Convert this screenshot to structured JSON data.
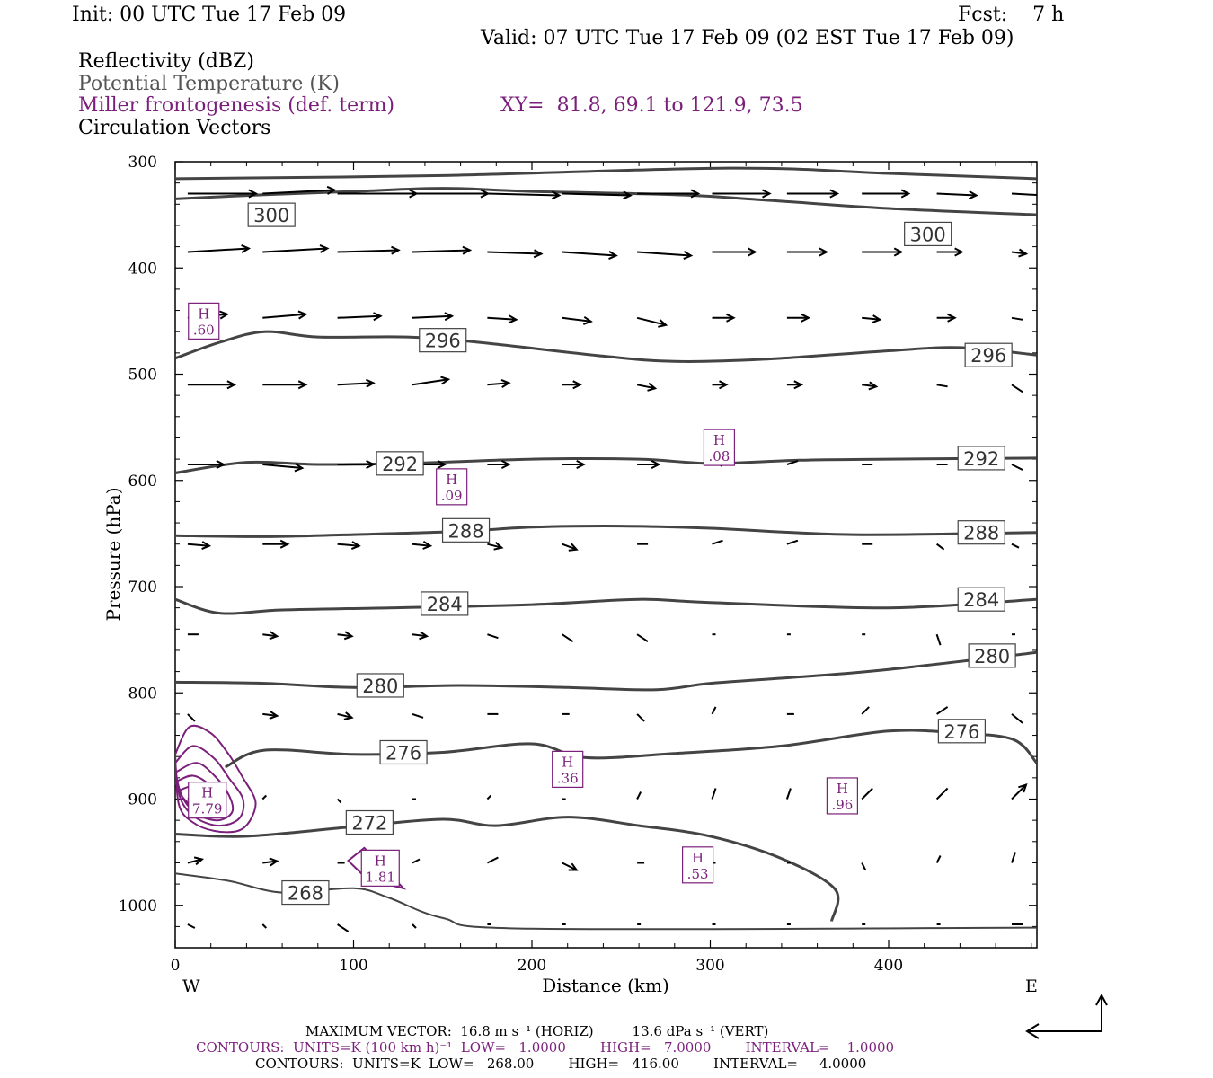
{
  "header": {
    "init": "Init: 00 UTC Tue 17 Feb 09",
    "fcst": "Fcst:    7 h",
    "valid": "Valid: 07 UTC Tue 17 Feb 09 (02 EST Tue 17 Feb 09)",
    "field1": "Reflectivity (dBZ)",
    "field2": "Potential Temperature (K)",
    "field3": "Miller frontogenesis (def. term)",
    "xy": "XY=  81.8, 69.1 to 121.9, 73.5",
    "field4": "Circulation Vectors"
  },
  "colors": {
    "theta": "#444444",
    "fronto": "#7a1f7a",
    "vectors": "#000000"
  },
  "chart_data": {
    "type": "line",
    "xlabel": "Distance (km)",
    "ylabel": "Pressure (hPa)",
    "xlim": [
      0,
      483
    ],
    "ylim": [
      300,
      1040
    ],
    "y_inverted": true,
    "x_ticks": [
      "0",
      "100",
      "200",
      "300",
      "400"
    ],
    "y_ticks": [
      "300",
      "400",
      "500",
      "600",
      "700",
      "800",
      "900",
      "1000"
    ],
    "west_label": "W",
    "east_label": "E",
    "theta_contours": [
      {
        "label": "300",
        "points": [
          [
            0,
            335
          ],
          [
            50,
            331
          ],
          [
            100,
            328
          ],
          [
            150,
            325
          ],
          [
            200,
            328
          ],
          [
            280,
            331
          ],
          [
            330,
            336
          ],
          [
            400,
            344
          ],
          [
            483,
            350
          ]
        ]
      },
      {
        "label": "296",
        "points": [
          [
            0,
            485
          ],
          [
            25,
            470
          ],
          [
            50,
            460
          ],
          [
            80,
            465
          ],
          [
            130,
            465
          ],
          [
            170,
            470
          ],
          [
            240,
            483
          ],
          [
            280,
            488
          ],
          [
            330,
            486
          ],
          [
            400,
            478
          ],
          [
            440,
            475
          ],
          [
            483,
            482
          ]
        ]
      },
      {
        "label": "292",
        "points": [
          [
            0,
            593
          ],
          [
            40,
            583
          ],
          [
            80,
            585
          ],
          [
            130,
            584
          ],
          [
            200,
            580
          ],
          [
            260,
            580
          ],
          [
            300,
            584
          ],
          [
            350,
            581
          ],
          [
            400,
            580
          ],
          [
            483,
            579
          ]
        ]
      },
      {
        "label": "288",
        "points": [
          [
            0,
            652
          ],
          [
            50,
            653
          ],
          [
            100,
            651
          ],
          [
            160,
            648
          ],
          [
            200,
            644
          ],
          [
            250,
            643
          ],
          [
            300,
            645
          ],
          [
            380,
            651
          ],
          [
            483,
            649
          ]
        ]
      },
      {
        "label": "284",
        "points": [
          [
            0,
            712
          ],
          [
            25,
            725
          ],
          [
            60,
            722
          ],
          [
            120,
            720
          ],
          [
            200,
            717
          ],
          [
            260,
            712
          ],
          [
            300,
            715
          ],
          [
            400,
            720
          ],
          [
            483,
            712
          ]
        ]
      },
      {
        "label": "280",
        "points": [
          [
            0,
            790
          ],
          [
            50,
            791
          ],
          [
            100,
            795
          ],
          [
            160,
            793
          ],
          [
            220,
            795
          ],
          [
            270,
            797
          ],
          [
            300,
            791
          ],
          [
            350,
            785
          ],
          [
            400,
            778
          ],
          [
            483,
            762
          ]
        ]
      },
      {
        "label": "276",
        "points": [
          [
            28,
            870
          ],
          [
            50,
            854
          ],
          [
            100,
            858
          ],
          [
            150,
            856
          ],
          [
            200,
            848
          ],
          [
            230,
            861
          ],
          [
            280,
            857
          ],
          [
            340,
            850
          ],
          [
            400,
            836
          ],
          [
            440,
            838
          ],
          [
            470,
            844
          ],
          [
            483,
            866
          ]
        ]
      },
      {
        "label": "272",
        "points": [
          [
            0,
            933
          ],
          [
            40,
            935
          ],
          [
            100,
            926
          ],
          [
            150,
            919
          ],
          [
            180,
            925
          ],
          [
            220,
            917
          ],
          [
            260,
            925
          ],
          [
            300,
            935
          ],
          [
            340,
            956
          ],
          [
            370,
            985
          ],
          [
            368,
            1015
          ]
        ]
      },
      {
        "label": "268",
        "points": [
          [
            0,
            970
          ],
          [
            30,
            977
          ],
          [
            60,
            988
          ],
          [
            100,
            984
          ],
          [
            120,
            993
          ],
          [
            150,
            1012
          ],
          [
            200,
            1022
          ],
          [
            483,
            1021
          ]
        ]
      }
    ],
    "fronto_maxima": [
      {
        "label": "H",
        "value": ".60"
      },
      {
        "label": "H",
        "value": "7.79"
      },
      {
        "label": "H",
        "value": "1.81"
      },
      {
        "label": "H",
        "value": ".09"
      },
      {
        "label": "H",
        "value": ".08"
      },
      {
        "label": "H",
        "value": ".36"
      },
      {
        "label": "H",
        "value": ".53"
      },
      {
        "label": "H",
        "value": ".96"
      }
    ],
    "fronto_maxima_positions": [
      [
        16,
        450
      ],
      [
        18,
        901
      ],
      [
        115,
        965
      ],
      [
        155,
        606
      ],
      [
        305,
        569
      ],
      [
        220,
        872
      ],
      [
        293,
        962
      ],
      [
        374,
        897
      ]
    ]
  },
  "footer": {
    "max_vector": "MAXIMUM VECTOR:  16.8 m s⁻¹ (HORIZ)         13.6 dPa s⁻¹ (VERT)",
    "contours1": "CONTOURS:  UNITS=K (100 km h)⁻¹  LOW=   1.0000        HIGH=   7.0000        INTERVAL=    1.0000",
    "contours2": "CONTOURS:  UNITS=K  LOW=   268.00        HIGH=   416.00        INTERVAL=     4.0000"
  }
}
